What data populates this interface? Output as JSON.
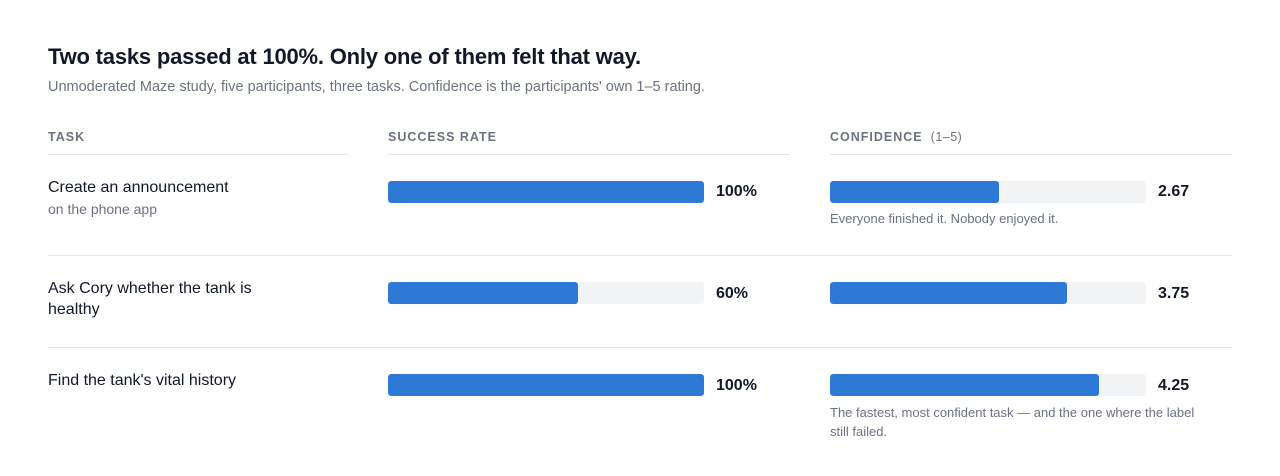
{
  "title": "Two tasks passed at 100%. Only one of them felt that way.",
  "subtitle": "Unmoderated Maze study, five participants, three tasks. Confidence is the participants' own 1–5 rating.",
  "columns": {
    "task": "TASK",
    "success": "SUCCESS RATE",
    "confidence": "CONFIDENCE",
    "confidence_unit": "(1–5)"
  },
  "colors": {
    "bar": "#2f79d6",
    "track": "#f1f3f5",
    "rule": "#e5e7eb"
  },
  "chart_data": {
    "type": "bar",
    "orientation": "horizontal",
    "categories": [
      "Create an announcement on the phone app",
      "Ask Cory whether the tank is healthy",
      "Find the tank's vital history"
    ],
    "series": [
      {
        "name": "SUCCESS RATE",
        "values": [
          100,
          60,
          100
        ],
        "range": [
          0,
          100
        ],
        "unit": "%"
      },
      {
        "name": "CONFIDENCE",
        "values": [
          2.67,
          3.75,
          4.25
        ],
        "range": [
          1,
          5
        ]
      }
    ],
    "grid": false,
    "legend": "none"
  },
  "rows": [
    {
      "task": "Create an announcement",
      "task_sub": "on the phone app",
      "success": 100,
      "success_label": "100%",
      "confidence": 2.67,
      "confidence_label": "2.67",
      "note": "Everyone finished it. Nobody enjoyed it."
    },
    {
      "task": "Ask Cory whether the tank is healthy",
      "task_sub": "",
      "success": 60,
      "success_label": "60%",
      "confidence": 3.75,
      "confidence_label": "3.75",
      "note": ""
    },
    {
      "task": "Find the tank's vital history",
      "task_sub": "",
      "success": 100,
      "success_label": "100%",
      "confidence": 4.25,
      "confidence_label": "4.25",
      "note": "The fastest, most confident task — and the one where the label still failed."
    }
  ]
}
